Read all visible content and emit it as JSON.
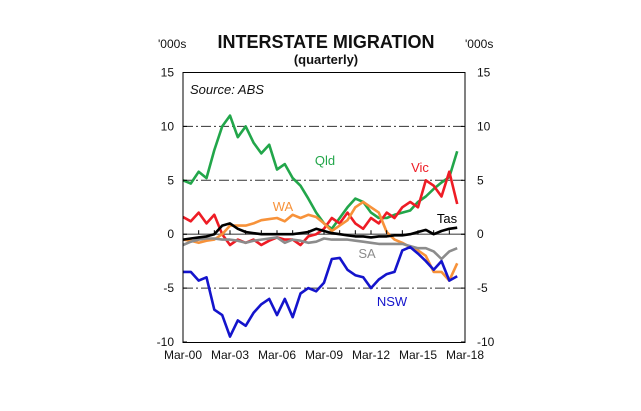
{
  "chart_data": {
    "type": "line",
    "title": "INTERSTATE MIGRATION",
    "subtitle": "(quarterly)",
    "source": "Source: ABS",
    "ylabel_left": "'000s",
    "ylabel_right": "'000s",
    "ylim": [
      -10,
      15
    ],
    "yticks": [
      "15",
      "10",
      "5",
      "0",
      "-5",
      "-10"
    ],
    "xticks": [
      "Mar-00",
      "Mar-03",
      "Mar-06",
      "Mar-09",
      "Mar-12",
      "Mar-15",
      "Mar-18"
    ],
    "grid": "dash-dot horizontal at 10, 5, -5",
    "x": [
      "Mar-00",
      "Sep-00",
      "Mar-01",
      "Sep-01",
      "Mar-02",
      "Sep-02",
      "Mar-03",
      "Sep-03",
      "Mar-04",
      "Sep-04",
      "Mar-05",
      "Sep-05",
      "Mar-06",
      "Sep-06",
      "Mar-07",
      "Sep-07",
      "Mar-08",
      "Sep-08",
      "Mar-09",
      "Sep-09",
      "Mar-10",
      "Sep-10",
      "Mar-11",
      "Sep-11",
      "Mar-12",
      "Sep-12",
      "Mar-13",
      "Sep-13",
      "Mar-14",
      "Sep-14",
      "Mar-15",
      "Sep-15",
      "Mar-16",
      "Sep-16",
      "Mar-17",
      "Sep-17"
    ],
    "series": [
      {
        "name": "Qld",
        "color": "#22a64a",
        "values": [
          5,
          4.7,
          5.8,
          5.2,
          7.8,
          10,
          11,
          9,
          10,
          8.5,
          7.5,
          8.3,
          6,
          6.5,
          5.2,
          4.5,
          3.3,
          2,
          1,
          0.5,
          1.5,
          2.5,
          3.3,
          3,
          2,
          1.5,
          1.5,
          1.8,
          2,
          2.2,
          3,
          3.5,
          4.2,
          4.8,
          5.3,
          7.7
        ]
      },
      {
        "name": "Vic",
        "color": "#ee1c25",
        "values": [
          1.6,
          1.2,
          2,
          1,
          1.8,
          0,
          -1,
          -0.5,
          -0.8,
          -0.5,
          -1,
          -0.6,
          -0.3,
          -0.5,
          -0.5,
          -1,
          -0.2,
          0,
          0.5,
          1.5,
          1,
          2,
          1,
          0.5,
          1.5,
          1,
          2,
          1.5,
          2.5,
          3,
          2.5,
          5,
          4.5,
          3.5,
          5.8,
          2.8
        ]
      },
      {
        "name": "WA",
        "color": "#f7923a",
        "values": [
          -0.5,
          -0.6,
          -0.8,
          -0.6,
          -0.5,
          0,
          0.8,
          0.8,
          0.8,
          1,
          1.3,
          1.4,
          1.5,
          1.2,
          1.8,
          1.5,
          1.8,
          1.6,
          1,
          0.3,
          0.8,
          1.3,
          2.5,
          3,
          2.5,
          2,
          0.2,
          -0.5,
          -0.8,
          -1.2,
          -1.5,
          -2,
          -3.5,
          -3.5,
          -4.3,
          -2.7
        ]
      },
      {
        "name": "SA",
        "color": "#8c8c8c",
        "values": [
          -1,
          -0.7,
          -0.5,
          -0.4,
          -0.4,
          -0.5,
          -0.5,
          -0.6,
          -0.8,
          -0.6,
          -0.5,
          -0.4,
          -0.3,
          -0.8,
          -0.5,
          -0.6,
          -0.8,
          -0.7,
          -0.4,
          -0.5,
          -0.5,
          -0.5,
          -0.6,
          -0.7,
          -0.8,
          -0.9,
          -0.9,
          -0.9,
          -0.9,
          -1.1,
          -1.3,
          -1.3,
          -1.6,
          -2.3,
          -1.6,
          -1.3
        ]
      },
      {
        "name": "Tas",
        "color": "#000000",
        "values": [
          -0.5,
          -0.4,
          -0.3,
          -0.2,
          0,
          0.8,
          1,
          0.5,
          0.2,
          0.1,
          0,
          0,
          0,
          0,
          0,
          0.1,
          0.2,
          0.5,
          0.3,
          0.1,
          0,
          -0.1,
          -0.2,
          -0.2,
          -0.3,
          -0.2,
          -0.2,
          -0.1,
          -0.1,
          0,
          0.2,
          0.4,
          0,
          0.3,
          0.5,
          0.6
        ]
      },
      {
        "name": "NSW",
        "color": "#1414cc",
        "values": [
          -3.5,
          -3.5,
          -4.3,
          -4,
          -7,
          -7.5,
          -9.5,
          -8,
          -8.5,
          -7.3,
          -6.5,
          -6,
          -7.5,
          -6,
          -7.7,
          -5.5,
          -5,
          -5.3,
          -4.5,
          -2.3,
          -2.2,
          -3.3,
          -3.8,
          -4,
          -5,
          -4.2,
          -3.7,
          -3.5,
          -1.5,
          -1.2,
          -1.8,
          -2.5,
          -3.3,
          -2.5,
          -4.3,
          -3.9
        ]
      }
    ]
  }
}
